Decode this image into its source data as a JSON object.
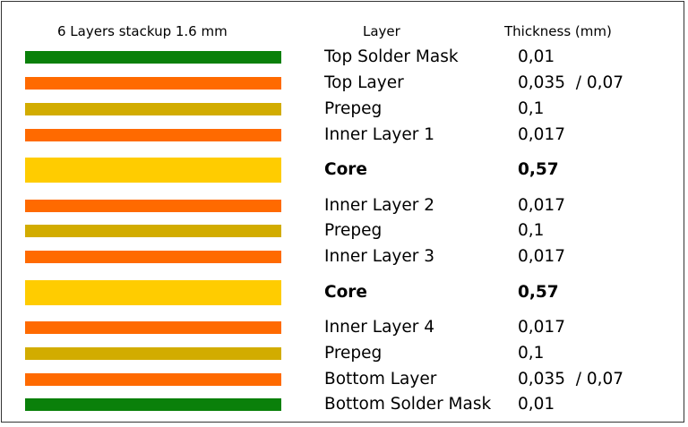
{
  "headers": {
    "stackup": "6 Layers stackup 1.6 mm",
    "layer": "Layer",
    "thickness": "Thickness (mm)"
  },
  "colors": {
    "solder_mask": "#0a800a",
    "copper": "#ff6a00",
    "prepreg": "#d2ac00",
    "core": "#ffcc00"
  },
  "layers": [
    {
      "name": "Top Solder Mask",
      "thickness": "0,01",
      "type": "solder_mask",
      "bold": false
    },
    {
      "name": "Top Layer",
      "thickness": "0,035  / 0,07",
      "type": "copper",
      "bold": false
    },
    {
      "name": "Prepeg",
      "thickness": "0,1",
      "type": "prepreg",
      "bold": false
    },
    {
      "name": "Inner Layer 1",
      "thickness": "0,017",
      "type": "copper",
      "bold": false
    },
    {
      "name": "Core",
      "thickness": "0,57",
      "type": "core",
      "bold": true
    },
    {
      "name": "Inner Layer 2",
      "thickness": "0,017",
      "type": "copper",
      "bold": false
    },
    {
      "name": "Prepeg",
      "thickness": "0,1",
      "type": "prepreg",
      "bold": false
    },
    {
      "name": "Inner Layer 3",
      "thickness": "0,017",
      "type": "copper",
      "bold": false
    },
    {
      "name": "Core",
      "thickness": "0,57",
      "type": "core",
      "bold": true
    },
    {
      "name": "Inner Layer 4",
      "thickness": "0,017",
      "type": "copper",
      "bold": false
    },
    {
      "name": "Prepeg",
      "thickness": "0,1",
      "type": "prepreg",
      "bold": false
    },
    {
      "name": "Bottom Layer",
      "thickness": "0,035  / 0,07",
      "type": "copper",
      "bold": false
    },
    {
      "name": "Bottom Solder Mask",
      "thickness": "0,01",
      "type": "solder_mask",
      "bold": false
    }
  ]
}
